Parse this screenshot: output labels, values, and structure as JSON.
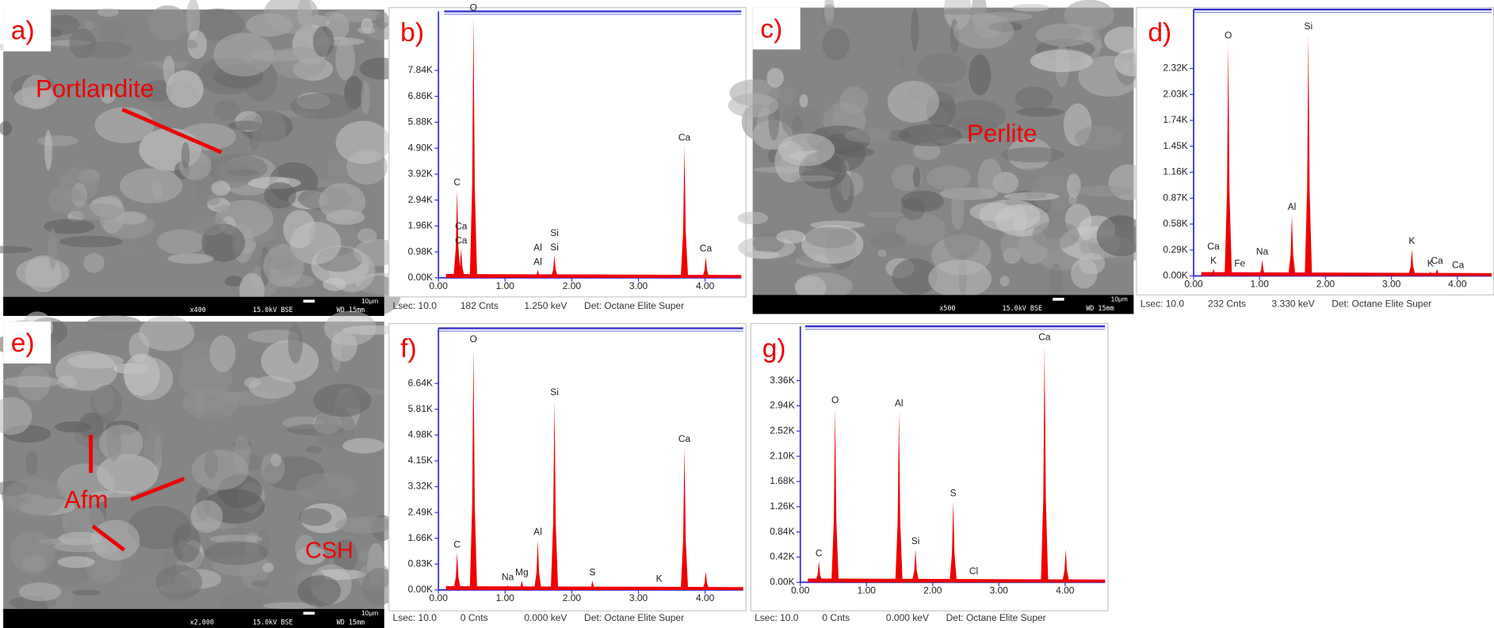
{
  "panels": [
    {
      "type": "image",
      "label": "a)",
      "annotations": [
        "Portlandite"
      ],
      "info": [
        "x400",
        "15.0kV BSE",
        "WD 15mm"
      ],
      "scale": "10μm"
    },
    {
      "type": "spectrum",
      "label": "b)",
      "xticks": [
        {
          "value": 0,
          "label": "0.00"
        },
        {
          "value": 1,
          "label": "1.00"
        },
        {
          "value": 2,
          "label": "2.00"
        },
        {
          "value": 3,
          "label": "3.00"
        },
        {
          "value": 4,
          "label": "4.00"
        }
      ],
      "yticks": [
        {
          "value": 0,
          "label": "0.00K"
        },
        {
          "value": 0.98,
          "label": "0.98K"
        },
        {
          "value": 1.96,
          "label": "1.96K"
        },
        {
          "value": 2.94,
          "label": "2.94K"
        },
        {
          "value": 3.92,
          "label": "3.92K"
        },
        {
          "value": 4.9,
          "label": "4.90K"
        },
        {
          "value": 5.88,
          "label": "5.88K"
        },
        {
          "value": 6.86,
          "label": "6.86K"
        },
        {
          "value": 7.84,
          "label": "7.84K"
        }
      ],
      "peaks": [
        {
          "x": 0.28,
          "height": 3.3,
          "labels": [
            "C"
          ]
        },
        {
          "x": 0.34,
          "height": 1.1,
          "labels": [
            "Ca",
            "Ca"
          ]
        },
        {
          "x": 0.525,
          "height": 9.9,
          "labels": [
            "O"
          ]
        },
        {
          "x": 1.49,
          "height": 0.3,
          "labels": [
            "Al",
            "Al"
          ]
        },
        {
          "x": 1.74,
          "height": 0.85,
          "labels": [
            "Si",
            "Si"
          ]
        },
        {
          "x": 3.69,
          "height": 5.0,
          "labels": [
            "Ca"
          ]
        },
        {
          "x": 4.01,
          "height": 0.8,
          "labels": [
            "Ca"
          ]
        }
      ],
      "footer": [
        "Lsec: 10.0",
        "182 Cnts",
        "1.250 keV",
        "Det: Octane Elite Super"
      ]
    },
    {
      "type": "image",
      "label": "c)",
      "annotations": [
        "Perlite"
      ],
      "info": [
        "x500",
        "15.0kV BSE",
        "WD 15mm"
      ],
      "scale": "10μm"
    },
    {
      "type": "spectrum",
      "label": "d)",
      "xticks": [
        {
          "value": 0,
          "label": "0.00"
        },
        {
          "value": 1,
          "label": "1.00"
        },
        {
          "value": 2,
          "label": "2.00"
        },
        {
          "value": 3,
          "label": "3.00"
        },
        {
          "value": 4,
          "label": "4.00"
        }
      ],
      "yticks": [
        {
          "value": 0,
          "label": "0.00K"
        },
        {
          "value": 0.29,
          "label": "0.29K"
        },
        {
          "value": 0.58,
          "label": "0.58K"
        },
        {
          "value": 0.87,
          "label": "0.87K"
        },
        {
          "value": 1.16,
          "label": "1.16K"
        },
        {
          "value": 1.45,
          "label": "1.45K"
        },
        {
          "value": 1.74,
          "label": "1.74K"
        },
        {
          "value": 2.03,
          "label": "2.03K"
        },
        {
          "value": 2.32,
          "label": "2.32K"
        }
      ],
      "peaks": [
        {
          "x": 0.3,
          "height": 0.08,
          "labels": [
            "Ca",
            "K"
          ]
        },
        {
          "x": 0.525,
          "height": 2.6,
          "labels": [
            "O"
          ]
        },
        {
          "x": 0.7,
          "height": 0.05,
          "labels": [
            "Fe"
          ]
        },
        {
          "x": 1.04,
          "height": 0.18,
          "labels": [
            "Na"
          ]
        },
        {
          "x": 1.49,
          "height": 0.68,
          "labels": [
            "Al"
          ]
        },
        {
          "x": 1.74,
          "height": 2.7,
          "labels": [
            "Si"
          ]
        },
        {
          "x": 3.31,
          "height": 0.3,
          "labels": [
            "K"
          ]
        },
        {
          "x": 3.59,
          "height": 0.05,
          "labels": [
            "K"
          ]
        },
        {
          "x": 3.69,
          "height": 0.08,
          "labels": [
            "Ca"
          ]
        },
        {
          "x": 4.01,
          "height": 0.03,
          "labels": [
            "Ca"
          ]
        }
      ],
      "footer": [
        "Lsec: 10.0",
        "232 Cnts",
        "3.330 keV",
        "Det: Octane Elite Super"
      ]
    },
    {
      "type": "image",
      "label": "e)",
      "annotations": [
        "Afm",
        "CSH"
      ],
      "info": [
        "x2,000",
        "15.0kV BSE",
        "WD 15mm"
      ],
      "scale": "10μm"
    },
    {
      "type": "spectrum",
      "label": "f)",
      "xticks": [
        {
          "value": 0,
          "label": "0.00"
        },
        {
          "value": 1,
          "label": "1.00"
        },
        {
          "value": 2,
          "label": "2.00"
        },
        {
          "value": 3,
          "label": "3.00"
        },
        {
          "value": 4,
          "label": "4.00"
        }
      ],
      "yticks": [
        {
          "value": 0,
          "label": "0.00K"
        },
        {
          "value": 0.83,
          "label": "0.83K"
        },
        {
          "value": 1.66,
          "label": "1.66K"
        },
        {
          "value": 2.49,
          "label": "2.49K"
        },
        {
          "value": 3.32,
          "label": "3.32K"
        },
        {
          "value": 4.15,
          "label": "4.15K"
        },
        {
          "value": 4.98,
          "label": "4.98K"
        },
        {
          "value": 5.81,
          "label": "5.81K"
        },
        {
          "value": 6.64,
          "label": "6.64K"
        }
      ],
      "peaks": [
        {
          "x": 0.28,
          "height": 1.2,
          "labels": [
            "C"
          ]
        },
        {
          "x": 0.525,
          "height": 7.8,
          "labels": [
            "O"
          ]
        },
        {
          "x": 1.04,
          "height": 0.15,
          "labels": [
            "Na"
          ]
        },
        {
          "x": 1.25,
          "height": 0.3,
          "labels": [
            "Mg"
          ]
        },
        {
          "x": 1.49,
          "height": 1.6,
          "labels": [
            "Al"
          ]
        },
        {
          "x": 1.74,
          "height": 6.1,
          "labels": [
            "Si"
          ]
        },
        {
          "x": 2.31,
          "height": 0.3,
          "labels": [
            "S"
          ]
        },
        {
          "x": 3.31,
          "height": 0.1,
          "labels": [
            "K"
          ]
        },
        {
          "x": 3.69,
          "height": 4.6,
          "labels": [
            "Ca"
          ]
        },
        {
          "x": 4.01,
          "height": 0.6,
          "labels": []
        }
      ],
      "footer": [
        "Lsec: 10.0",
        "0 Cnts",
        "0.000 keV",
        "Det: Octane Elite Super"
      ]
    },
    {
      "type": "spectrum",
      "label": "g)",
      "xticks": [
        {
          "value": 0,
          "label": "0.00"
        },
        {
          "value": 1,
          "label": "1.00"
        },
        {
          "value": 2,
          "label": "2.00"
        },
        {
          "value": 3,
          "label": "3.00"
        },
        {
          "value": 4,
          "label": "4.00"
        }
      ],
      "yticks": [
        {
          "value": 0,
          "label": "0.00K"
        },
        {
          "value": 0.42,
          "label": "0.42K"
        },
        {
          "value": 0.84,
          "label": "0.84K"
        },
        {
          "value": 1.26,
          "label": "1.26K"
        },
        {
          "value": 1.68,
          "label": "1.68K"
        },
        {
          "value": 2.1,
          "label": "2.10K"
        },
        {
          "value": 2.52,
          "label": "2.52K"
        },
        {
          "value": 2.94,
          "label": "2.94K"
        },
        {
          "value": 3.36,
          "label": "3.36K"
        }
      ],
      "peaks": [
        {
          "x": 0.28,
          "height": 0.35,
          "labels": [
            "C"
          ]
        },
        {
          "x": 0.525,
          "height": 2.9,
          "labels": [
            "O"
          ]
        },
        {
          "x": 1.49,
          "height": 2.85,
          "labels": [
            "Al"
          ]
        },
        {
          "x": 1.74,
          "height": 0.55,
          "labels": [
            "Si"
          ]
        },
        {
          "x": 2.31,
          "height": 1.35,
          "labels": [
            "S"
          ]
        },
        {
          "x": 2.62,
          "height": 0.05,
          "labels": [
            "Cl"
          ]
        },
        {
          "x": 3.69,
          "height": 3.95,
          "labels": [
            "Ca"
          ]
        },
        {
          "x": 4.01,
          "height": 0.55,
          "labels": []
        }
      ],
      "footer": [
        "Lsec: 10.0",
        "0 Cnts",
        "0.000 keV",
        "Det: Octane Elite Super"
      ]
    }
  ]
}
